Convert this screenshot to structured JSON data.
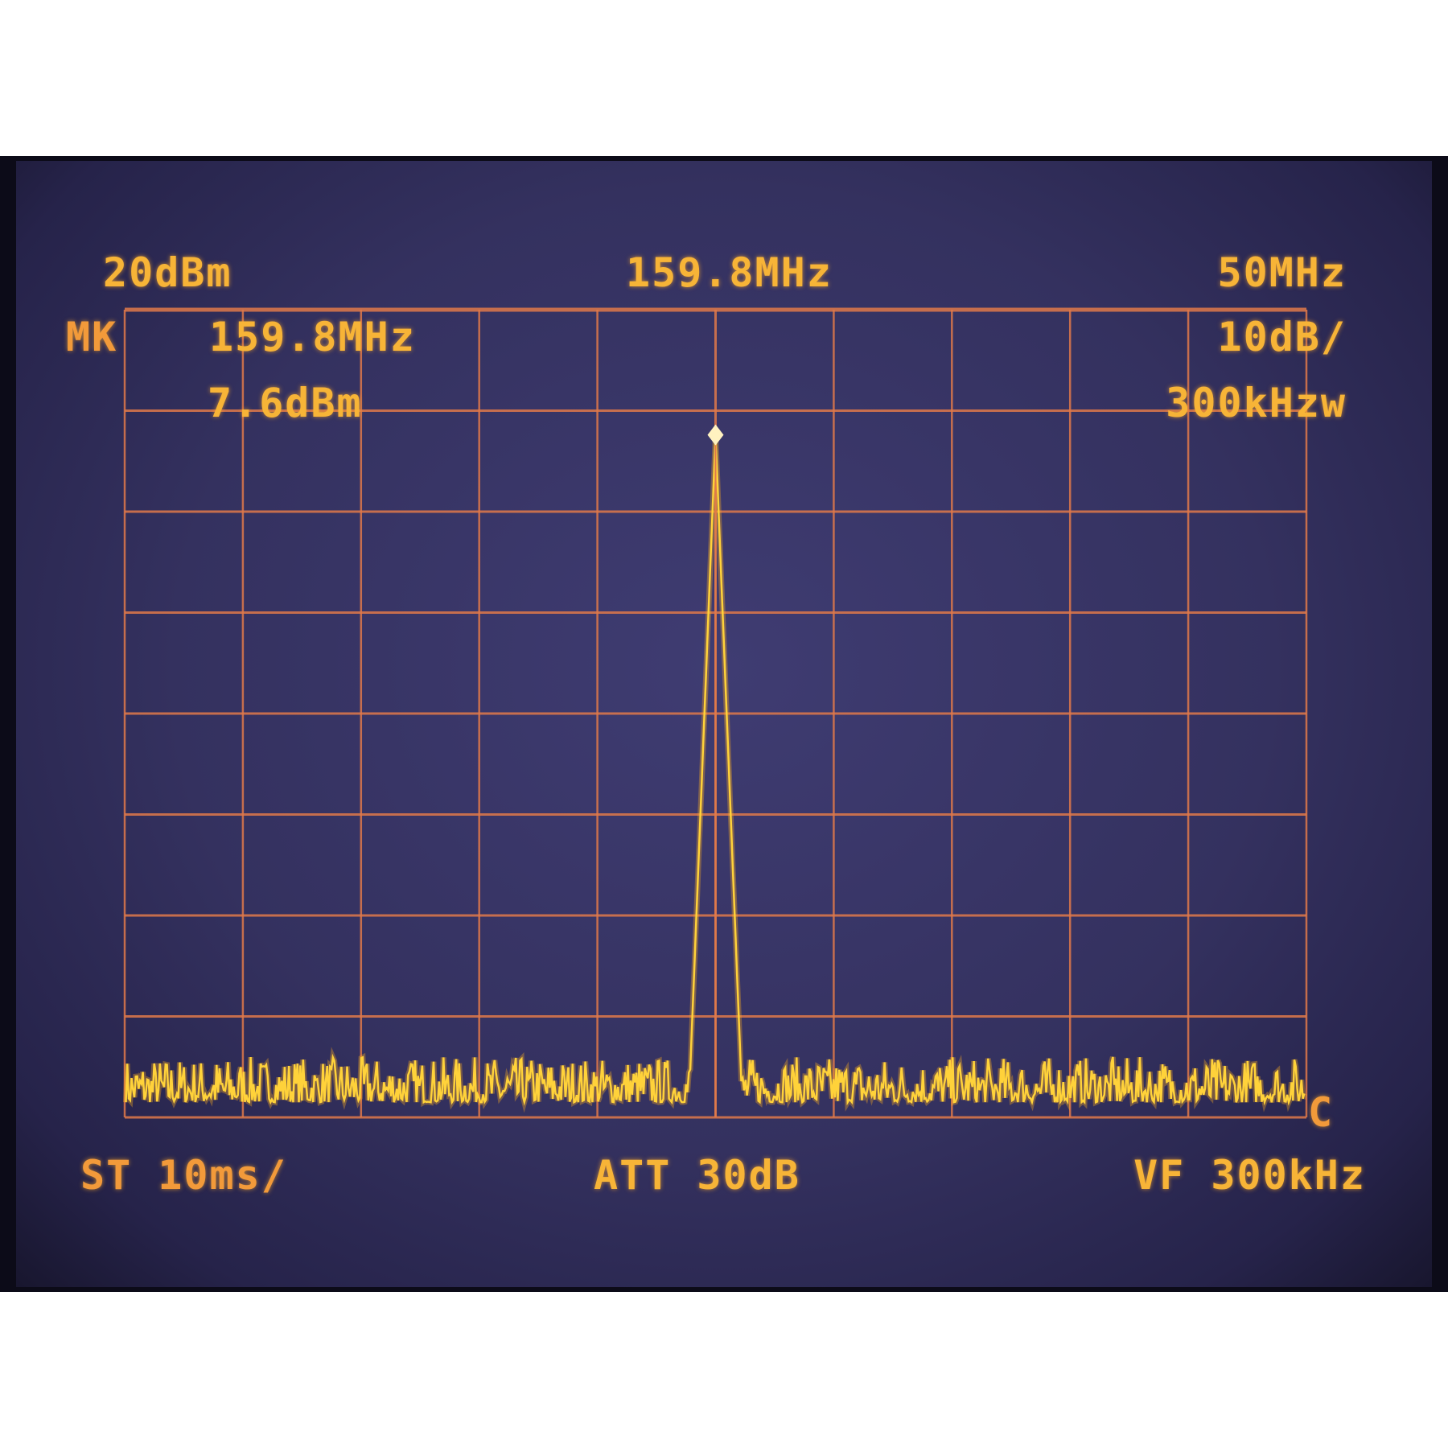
{
  "header": {
    "ref_level": "20dBm",
    "center_freq": "159.8MHz",
    "span": "50MHz",
    "marker_label": "MK",
    "marker_freq": "159.8MHz",
    "marker_level": "7.6dBm",
    "scale": "10dB/",
    "rbw": "300kHzw"
  },
  "footer": {
    "sweep_time": "ST 10ms/",
    "attenuation": "ATT 30dB",
    "video_filter": "VF 300kHz",
    "trace_mode": "C"
  },
  "colors": {
    "trace": "#ffd23a",
    "graticule": "#e0794a",
    "text": "#f7b437",
    "background": "#34315f"
  },
  "chart_data": {
    "type": "line",
    "title": "",
    "xlabel": "",
    "ylabel": "",
    "x_unit": "MHz",
    "y_unit": "dBm",
    "center_x": 159.8,
    "span_x": 50,
    "xlim": [
      134.8,
      184.8
    ],
    "ylim": [
      -60,
      20
    ],
    "y_per_div": 10,
    "divisions": {
      "x": 10,
      "y": 8
    },
    "grid": true,
    "series": [
      {
        "peak": {
          "x": 159.8,
          "y": 7.6
        },
        "peak_base_width": 2.2,
        "noise_floor": -57
      }
    ],
    "marker": {
      "x": 159.8,
      "y": 7.6
    }
  }
}
